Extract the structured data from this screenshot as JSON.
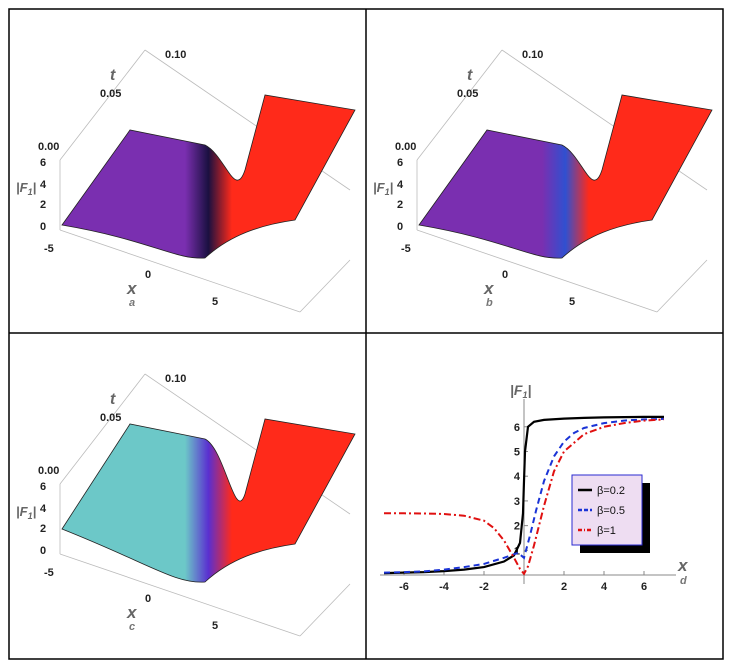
{
  "panels": [
    {
      "tag": "a",
      "t_ticks": [
        "0.00",
        "0.05",
        "0.10"
      ],
      "f_ticks": [
        "0",
        "2",
        "4",
        "6"
      ],
      "x_ticks": [
        "-5",
        "0",
        "5"
      ],
      "t_label": "t",
      "x_label": "x",
      "f_label": "|F",
      "colors": {
        "left": "#7a2fb0",
        "right": "#ff2a1a",
        "mid": "#1a1040"
      }
    },
    {
      "tag": "b",
      "t_ticks": [
        "0.00",
        "0.05",
        "0.10"
      ],
      "f_ticks": [
        "0",
        "2",
        "4",
        "6"
      ],
      "x_ticks": [
        "-5",
        "0",
        "5"
      ],
      "t_label": "t",
      "x_label": "x",
      "f_label": "|F",
      "colors": {
        "left": "#7a2fb0",
        "right": "#ff2a1a",
        "mid": "#3050d0"
      }
    },
    {
      "tag": "c",
      "t_ticks": [
        "0.00",
        "0.05",
        "0.10"
      ],
      "f_ticks": [
        "0",
        "2",
        "4",
        "6"
      ],
      "x_ticks": [
        "-5",
        "0",
        "5"
      ],
      "t_label": "t",
      "x_label": "x",
      "f_label": "|F",
      "colors": {
        "left": "#6cc8c8",
        "right": "#ff2a1a",
        "mid": "#5a2fd0"
      }
    }
  ],
  "chart_data": {
    "type": "line",
    "tag": "d",
    "xlabel": "x",
    "ylabel": "|F",
    "ylabel_sub": "1",
    "xlim": [
      -7.2,
      7.2
    ],
    "ylim": [
      -0.2,
      6.8
    ],
    "x_ticks": [
      -6,
      -4,
      -2,
      2,
      4,
      6
    ],
    "y_ticks": [
      1,
      2,
      3,
      4,
      5,
      6
    ],
    "series": [
      {
        "name": "β=0.2",
        "color": "#000000",
        "dash": "solid",
        "x": [
          -7,
          -6,
          -5,
          -4,
          -3,
          -2,
          -1,
          -0.5,
          -0.2,
          -0.05,
          0,
          0.05,
          0.2,
          0.5,
          1,
          2,
          3,
          4,
          5,
          6,
          7
        ],
        "y": [
          0.08,
          0.1,
          0.12,
          0.16,
          0.22,
          0.32,
          0.55,
          0.8,
          1.3,
          2.5,
          3.8,
          5.0,
          6.0,
          6.2,
          6.28,
          6.33,
          6.36,
          6.38,
          6.39,
          6.4,
          6.4
        ]
      },
      {
        "name": "β=0.5",
        "color": "#1a33d6",
        "dash": "6,4",
        "x": [
          -7,
          -6,
          -5,
          -4,
          -3,
          -2,
          -1,
          -0.3,
          0,
          0.3,
          0.6,
          1,
          1.5,
          2,
          2.5,
          3,
          4,
          5,
          6,
          7
        ],
        "y": [
          0.1,
          0.12,
          0.15,
          0.22,
          0.32,
          0.45,
          0.7,
          0.9,
          0.7,
          1.6,
          2.6,
          3.8,
          4.8,
          5.4,
          5.75,
          5.95,
          6.15,
          6.25,
          6.3,
          6.32
        ]
      },
      {
        "name": "β=1",
        "color": "#e01010",
        "dash": "7,3,2,3",
        "x": [
          -7,
          -6,
          -5,
          -4,
          -3,
          -2,
          -1.5,
          -1,
          -0.5,
          -0.2,
          0,
          0.2,
          0.5,
          1,
          1.5,
          2,
          3,
          4,
          5,
          6,
          7
        ],
        "y": [
          2.5,
          2.5,
          2.49,
          2.47,
          2.4,
          2.2,
          1.9,
          1.4,
          0.7,
          0.25,
          0.05,
          0.35,
          1.2,
          2.8,
          4.2,
          5.0,
          5.7,
          6.0,
          6.15,
          6.25,
          6.3
        ]
      }
    ],
    "legend_position": "center-right"
  }
}
